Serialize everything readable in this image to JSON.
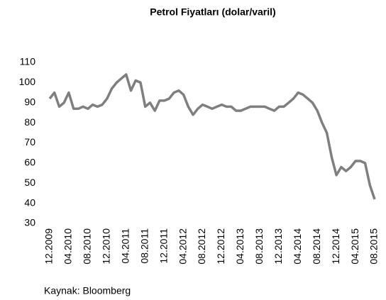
{
  "chart_data": {
    "type": "line",
    "title": "Petrol Fiyatları (dolar/varil)",
    "source": "Kaynak: Bloomberg",
    "categories": [
      "12.2009",
      null,
      null,
      null,
      "04.2010",
      null,
      null,
      null,
      "08.2010",
      null,
      null,
      null,
      "12.2010",
      null,
      null,
      null,
      "04.2011",
      null,
      null,
      null,
      "08.2011",
      null,
      null,
      null,
      "12.2011",
      null,
      null,
      null,
      "04.2012",
      null,
      null,
      null,
      "08.2012",
      null,
      null,
      null,
      "12.2012",
      null,
      null,
      null,
      "04.2013",
      null,
      null,
      null,
      "08.2013",
      null,
      null,
      null,
      "12.2013",
      null,
      null,
      null,
      "04.2014",
      null,
      null,
      null,
      "08.2014",
      null,
      null,
      null,
      "12.2014",
      null,
      null,
      null,
      "04.2015",
      null,
      null,
      null,
      "08.2015"
    ],
    "values": [
      92,
      95,
      88,
      90,
      95,
      87,
      87,
      88,
      87,
      89,
      88,
      89,
      92,
      97,
      100,
      102,
      104,
      96,
      101,
      100,
      88,
      90,
      86,
      91,
      91,
      92,
      95,
      96,
      94,
      88,
      84,
      87,
      89,
      88,
      87,
      88,
      89,
      88,
      88,
      86,
      86,
      87,
      88,
      88,
      88,
      88,
      87,
      86,
      88,
      88,
      90,
      92,
      95,
      94,
      92,
      90,
      86,
      80,
      75,
      63,
      54,
      58,
      56,
      58,
      61,
      61,
      60,
      49,
      42
    ],
    "color": "#7f7f7f",
    "ylim": [
      30,
      110
    ],
    "yticks": [
      30,
      40,
      50,
      60,
      70,
      80,
      90,
      100,
      110
    ],
    "grid": false
  }
}
